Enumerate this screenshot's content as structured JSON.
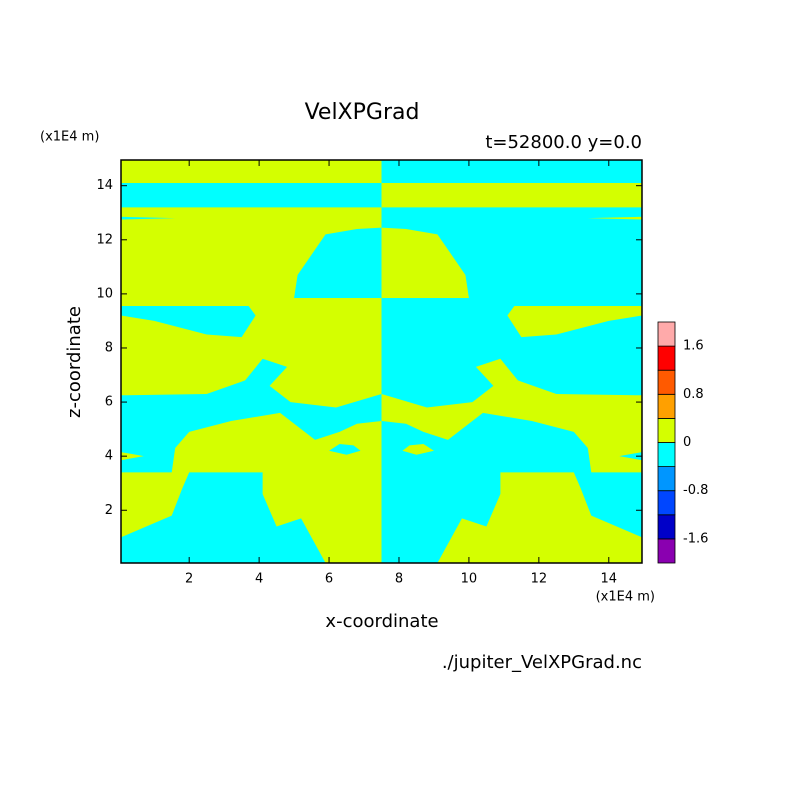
{
  "chart_data": {
    "type": "contour",
    "title": "VelXPGrad",
    "subtitle": "t=52800.0 y=0.0",
    "y_unit": "(x1E4 m)",
    "x_unit": "(x1E4 m)",
    "xlabel": "x-coordinate",
    "ylabel": "z-coordinate",
    "source": "./jupiter_VelXPGrad.nc",
    "xlim": [
      0.05,
      14.95
    ],
    "ylim": [
      0.05,
      14.95
    ],
    "xticks": [
      2,
      4,
      6,
      8,
      10,
      12,
      14
    ],
    "yticks": [
      2,
      4,
      6,
      8,
      10,
      12,
      14
    ],
    "colorbar": {
      "levels": [
        -1.6,
        -1.2,
        -0.8,
        -0.4,
        0,
        0.4,
        0.8,
        1.2,
        1.6
      ],
      "colors": [
        "#8a00b0",
        "#0000c8",
        "#0046ff",
        "#0096ff",
        "#00ffff",
        "#d4ff00",
        "#ffa000",
        "#ff5a00",
        "#ff0000",
        "#ffaaaa"
      ],
      "ticks": [
        -1.6,
        -0.8,
        0,
        0.8,
        1.6
      ]
    },
    "regions": [
      {
        "color": "#d4ff00",
        "x": [
          0.05,
          7.5,
          7.5,
          0.05
        ],
        "z": [
          0.05,
          0.05,
          14.95,
          14.95
        ]
      },
      {
        "color": "#00ffff",
        "x": [
          7.5,
          14.95,
          14.95,
          7.5
        ],
        "z": [
          0.05,
          0.05,
          14.95,
          14.95
        ]
      },
      {
        "color": "#00ffff",
        "x": [
          0.05,
          7.5,
          7.5,
          0.05
        ],
        "z": [
          14.1,
          14.1,
          13.2,
          13.2
        ]
      },
      {
        "color": "#d4ff00",
        "x": [
          14.95,
          7.5,
          7.5,
          14.95
        ],
        "z": [
          14.1,
          14.1,
          13.2,
          13.2
        ]
      },
      {
        "color": "#00ffff",
        "x": [
          0.05,
          1.6,
          0.05
        ],
        "z": [
          12.85,
          12.8,
          12.75
        ]
      },
      {
        "color": "#d4ff00",
        "x": [
          14.95,
          13.4,
          14.95
        ],
        "z": [
          12.85,
          12.8,
          12.75
        ]
      },
      {
        "color": "#00ffff",
        "x": [
          5.0,
          5.1,
          5.9,
          6.8,
          7.5,
          7.5
        ],
        "z": [
          9.85,
          10.7,
          12.2,
          12.4,
          12.45,
          9.85
        ]
      },
      {
        "color": "#d4ff00",
        "x": [
          10.0,
          9.9,
          9.1,
          8.2,
          7.5,
          7.5
        ],
        "z": [
          9.85,
          10.7,
          12.2,
          12.4,
          12.45,
          9.85
        ]
      },
      {
        "color": "#00ffff",
        "x": [
          0.05,
          3.7,
          3.9,
          3.5,
          2.5,
          1.0,
          0.05
        ],
        "z": [
          9.55,
          9.55,
          9.2,
          8.4,
          8.5,
          9.0,
          9.2
        ]
      },
      {
        "color": "#d4ff00",
        "x": [
          14.95,
          11.3,
          11.1,
          11.5,
          12.5,
          14.0,
          14.95
        ],
        "z": [
          9.55,
          9.55,
          9.2,
          8.4,
          8.5,
          9.0,
          9.2
        ]
      },
      {
        "color": "#00ffff",
        "x": [
          0.05,
          2.5,
          3.6,
          4.1,
          4.8,
          4.3,
          4.9,
          6.2,
          7.5,
          7.5,
          6.8,
          6.3,
          5.6,
          4.6,
          3.2,
          2.0,
          1.6,
          1.5,
          0.05
        ],
        "z": [
          6.25,
          6.3,
          6.8,
          7.6,
          7.3,
          6.6,
          6.0,
          5.8,
          6.3,
          5.3,
          5.2,
          4.9,
          4.6,
          5.6,
          5.3,
          4.9,
          4.3,
          3.4,
          3.4
        ]
      },
      {
        "color": "#d4ff00",
        "x": [
          14.95,
          12.5,
          11.4,
          10.9,
          10.2,
          10.7,
          10.1,
          8.8,
          7.5,
          7.5,
          8.2,
          8.7,
          9.4,
          10.4,
          11.8,
          13.0,
          13.4,
          13.5,
          14.95
        ],
        "z": [
          6.25,
          6.3,
          6.8,
          7.6,
          7.3,
          6.6,
          6.0,
          5.8,
          6.3,
          5.3,
          5.2,
          4.9,
          4.6,
          5.6,
          5.3,
          4.9,
          4.3,
          3.4,
          3.4
        ]
      },
      {
        "color": "#d4ff00",
        "x": [
          0.05,
          0.7,
          0.05
        ],
        "z": [
          4.15,
          4.0,
          3.85
        ]
      },
      {
        "color": "#00ffff",
        "x": [
          14.95,
          14.3,
          14.95
        ],
        "z": [
          4.15,
          4.0,
          3.85
        ]
      },
      {
        "color": "#00ffff",
        "x": [
          0.05,
          0.05,
          1.5,
          1.8,
          2.0,
          4.1,
          4.1,
          4.5,
          5.2,
          5.9
        ],
        "z": [
          0.05,
          1.0,
          1.8,
          2.8,
          3.4,
          3.4,
          2.6,
          1.4,
          1.7,
          0.05
        ]
      },
      {
        "color": "#d4ff00",
        "x": [
          14.95,
          14.95,
          13.5,
          13.2,
          13.0,
          10.9,
          10.9,
          10.5,
          9.8,
          9.1
        ],
        "z": [
          0.05,
          1.0,
          1.8,
          2.8,
          3.4,
          3.4,
          2.6,
          1.4,
          1.7,
          0.05
        ]
      },
      {
        "color": "#00ffff",
        "x": [
          6.0,
          6.3,
          6.7,
          6.9,
          6.5
        ],
        "z": [
          4.2,
          4.45,
          4.4,
          4.2,
          4.05
        ]
      },
      {
        "color": "#d4ff00",
        "x": [
          9.0,
          8.7,
          8.3,
          8.1,
          8.5
        ],
        "z": [
          4.2,
          4.45,
          4.4,
          4.2,
          4.05
        ]
      }
    ]
  }
}
